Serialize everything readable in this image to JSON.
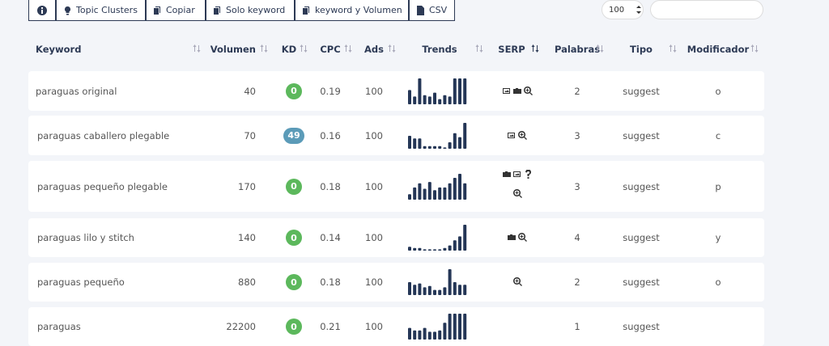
{
  "toolbar": {
    "buttons": [
      "Topic Clusters",
      "Copiar",
      "Solo keyword",
      "keyword y Volumen",
      "CSV"
    ],
    "page_size": "100"
  },
  "table": {
    "headers": [
      "Keyword",
      "Volumen",
      "KD",
      "CPC",
      "Ads",
      "Trends",
      "SERP",
      "Palabras",
      "Tipo",
      "Modificador"
    ],
    "rows": [
      {
        "keyword": "paraguas original",
        "volumen": 40,
        "kd": 0,
        "cpc": 0.19,
        "ads": 100,
        "trends": [
          55,
          30,
          100,
          35,
          30,
          45,
          20,
          35,
          30,
          100,
          100,
          100
        ],
        "palabras": 2,
        "tipo": "suggest",
        "modificador": "o"
      },
      {
        "keyword": "paraguas caballero plegable",
        "volumen": 70,
        "kd": 49,
        "cpc": 0.16,
        "ads": 100,
        "trends": [
          50,
          40,
          40,
          10,
          10,
          10,
          10,
          5,
          25,
          60,
          45,
          100
        ],
        "palabras": 3,
        "tipo": "suggest",
        "modificador": "c"
      },
      {
        "keyword": "paraguas pequeño plegable",
        "volumen": 170,
        "kd": 0,
        "cpc": 0.18,
        "ads": 100,
        "trends": [
          20,
          45,
          60,
          40,
          65,
          35,
          45,
          45,
          60,
          80,
          95,
          60
        ],
        "palabras": 3,
        "tipo": "suggest",
        "modificador": "p"
      },
      {
        "keyword": "paraguas lilo y stitch",
        "volumen": 140,
        "kd": 0,
        "cpc": 0.14,
        "ads": 100,
        "trends": [
          15,
          10,
          10,
          5,
          5,
          5,
          5,
          10,
          20,
          40,
          55,
          100
        ],
        "palabras": 4,
        "tipo": "suggest",
        "modificador": "y"
      },
      {
        "keyword": "paraguas pequeño",
        "volumen": 880,
        "kd": 0,
        "cpc": 0.18,
        "ads": 100,
        "trends": [
          50,
          40,
          45,
          30,
          35,
          20,
          20,
          30,
          100,
          50,
          40,
          40
        ],
        "palabras": 2,
        "tipo": "suggest",
        "modificador": "o"
      },
      {
        "keyword": "paraguas",
        "volumen": 22200,
        "kd": 0,
        "cpc": 0.21,
        "ads": 100,
        "trends": [
          45,
          35,
          35,
          45,
          30,
          30,
          35,
          65,
          100,
          100,
          100,
          100
        ],
        "palabras": 1,
        "tipo": "suggest"
      }
    ]
  }
}
